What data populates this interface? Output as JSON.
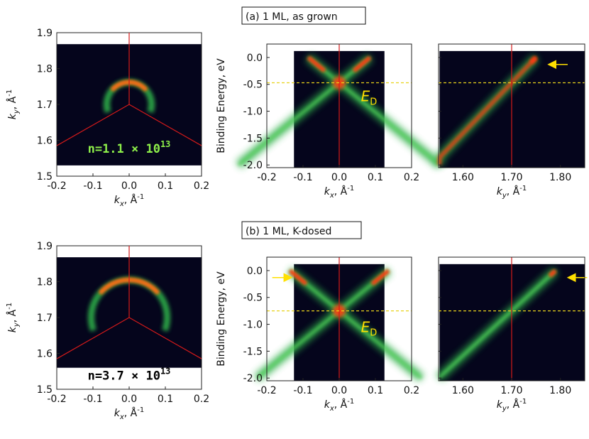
{
  "rows": [
    {
      "title": "(a) 1 ML, as grown",
      "density_label_text": "n=1.1 × 10",
      "density_exponent": "13",
      "ed_label": "E",
      "ed_sub": "D",
      "dirac_energy_eV": -0.47,
      "fermi_surface": {
        "center_ky": 1.7,
        "radius": 0.062,
        "style": "green-text"
      },
      "dispersion_kx_arrow": false,
      "dispersion_ky_arrow_ky": 1.77
    },
    {
      "title": "(b) 1 ML, K-dosed",
      "density_label_text": "n=3.7 × 10",
      "density_exponent": "13",
      "ed_label": "E",
      "ed_sub": "D",
      "dirac_energy_eV": -0.75,
      "fermi_surface": {
        "center_ky": 1.7,
        "radius": 0.105,
        "style": "white-box"
      },
      "dispersion_kx_arrow": true,
      "dispersion_ky_arrow_ky": 1.81
    }
  ],
  "fermi_panel": {
    "x_ticks": [
      "-0.2",
      "-0.1",
      "0.0",
      "0.1",
      "0.2"
    ],
    "y_ticks": [
      "1.9",
      "1.8",
      "1.7",
      "1.6",
      "1.5"
    ],
    "xlabel_var": "k",
    "xlabel_sub": "x",
    "xlabel_unit": ", Å",
    "xlabel_sup": "-1",
    "ylabel_var": "k",
    "ylabel_sub": "y",
    "ylabel_unit": ", Å",
    "ylabel_sup": "-1"
  },
  "kx_panel": {
    "x_ticks": [
      "-0.2",
      "-0.1",
      "0.0",
      "0.1",
      "0.2"
    ],
    "y_ticks": [
      "0.0",
      "-0.5",
      "-1.0",
      "-1.5",
      "-2.0"
    ],
    "ylabel": "Binding Energy, eV",
    "xlabel_var": "k",
    "xlabel_sub": "x",
    "xlabel_unit": ", Å",
    "xlabel_sup": "-1"
  },
  "ky_panel": {
    "x_ticks": [
      "1.60",
      "1.70",
      "1.80"
    ],
    "xlabel_var": "k",
    "xlabel_sub": "y",
    "xlabel_unit": ", Å",
    "xlabel_sup": "-1"
  },
  "colors": {
    "background": "#05051c",
    "band_green": "#2fb04a",
    "band_hot": "#ff3b10",
    "band_yellow": "#ffd21a",
    "marker_red": "#d41a1a",
    "dashed_yellow": "#e8d21a",
    "arrow_yellow": "#ffe000",
    "density_green": "#8ef04a"
  }
}
